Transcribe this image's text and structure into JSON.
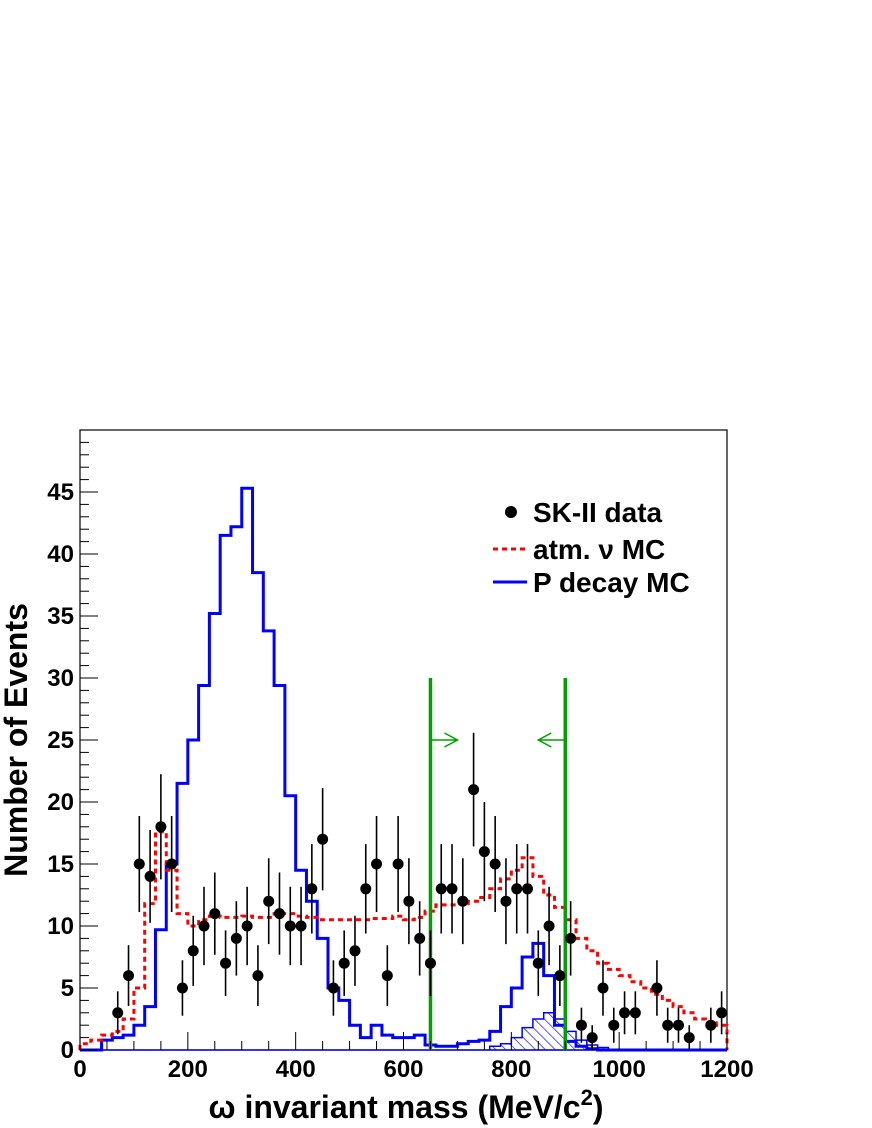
{
  "chart_data": {
    "type": "histogram",
    "title": "",
    "xlabel": "ω invariant mass (MeV/c²)",
    "xlabel_main": "ω invariant mass (MeV/c",
    "xlabel_sup": "2",
    "xlabel_close": ")",
    "ylabel": "Number of Events",
    "xlim": [
      0,
      1200
    ],
    "ylim": [
      0,
      50
    ],
    "x_ticks": [
      "0",
      "200",
      "400",
      "600",
      "800",
      "1000",
      "1200"
    ],
    "y_ticks": [
      "0",
      "5",
      "10",
      "15",
      "20",
      "25",
      "30",
      "35",
      "40",
      "45"
    ],
    "bin_width": 20,
    "grid": false,
    "legend": {
      "placement": "top-right",
      "entries": [
        {
          "label": "SK-II data",
          "style": "marker",
          "color": "#000000"
        },
        {
          "label": "atm. ν MC",
          "style": "dashed",
          "color": "#ff0000"
        },
        {
          "label": "P decay MC",
          "style": "solid",
          "color": "#0000ff"
        }
      ]
    },
    "cut_lines": {
      "color": "#00a000",
      "lower": 650,
      "upper": 900,
      "height": 30
    },
    "series": [
      {
        "name": "P decay MC",
        "kind": "step",
        "color": "#0000ff",
        "x_start": 0,
        "values": [
          0,
          0,
          0.8,
          1.0,
          1.2,
          2.0,
          3.5,
          9.7,
          15.0,
          21.5,
          25.0,
          29.4,
          35.2,
          41.5,
          42.2,
          45.3,
          38.5,
          33.8,
          29.4,
          20.5,
          14.5,
          12.0,
          9.0,
          5.0,
          4.0,
          2.0,
          1.0,
          2.0,
          1.2,
          1.0,
          1.0,
          1.2,
          0.4,
          0.3,
          0.3,
          0.5,
          0.7,
          0.8,
          1.5,
          3.5,
          5.0,
          7.5,
          8.6,
          6.0,
          2.0,
          0.7,
          0.3,
          0.1,
          0,
          0,
          0,
          0,
          0,
          0,
          0,
          0,
          0,
          0,
          0,
          0
        ]
      },
      {
        "name": "atm. ν MC",
        "kind": "step",
        "color": "#ff0000",
        "x_start": 0,
        "values": [
          0.5,
          0.8,
          1.2,
          1.5,
          2.5,
          5.0,
          11.8,
          17.6,
          14.5,
          11.0,
          10.0,
          10.5,
          10.8,
          10.7,
          10.7,
          10.8,
          10.7,
          10.7,
          11.0,
          11.0,
          10.8,
          10.7,
          10.5,
          10.5,
          10.5,
          10.5,
          10.5,
          10.6,
          10.6,
          10.8,
          10.5,
          10.7,
          11.2,
          11.7,
          11.7,
          11.8,
          12.0,
          12.3,
          13.0,
          13.8,
          14.5,
          15.5,
          14.0,
          12.5,
          11.5,
          10.5,
          9.0,
          8.0,
          7.0,
          6.5,
          6.0,
          5.5,
          5.0,
          4.5,
          4.0,
          3.5,
          3.0,
          2.5,
          2.2,
          2.0
        ]
      },
      {
        "name": "P decay MC (hatched)",
        "kind": "hatched",
        "color": "#0000ff",
        "x_start": 0,
        "values": [
          0,
          0,
          0,
          0,
          0,
          0,
          0,
          0,
          0,
          0,
          0,
          0,
          0,
          0,
          0,
          0,
          0,
          0,
          0,
          0,
          0,
          0,
          0,
          0,
          0,
          0,
          0,
          0,
          0,
          0,
          0,
          0,
          0,
          0,
          0,
          0,
          0,
          0,
          0.3,
          0.5,
          1.0,
          1.8,
          2.5,
          3.0,
          2.5,
          1.5,
          0.8,
          0.4,
          0.2,
          0,
          0,
          0,
          0,
          0,
          0,
          0,
          0,
          0,
          0,
          0
        ]
      },
      {
        "name": "SK-II data",
        "kind": "points",
        "color": "#000000",
        "x": [
          70,
          90,
          110,
          130,
          150,
          170,
          190,
          210,
          230,
          250,
          270,
          290,
          310,
          330,
          350,
          370,
          390,
          410,
          430,
          450,
          470,
          490,
          510,
          530,
          550,
          570,
          590,
          610,
          630,
          650,
          670,
          690,
          710,
          730,
          750,
          770,
          790,
          810,
          830,
          850,
          870,
          890,
          910,
          930,
          950,
          970,
          990,
          1010,
          1030,
          1070,
          1090,
          1110,
          1130,
          1170,
          1190
        ],
        "y": [
          3,
          6,
          15,
          14,
          18,
          15,
          5,
          8,
          10,
          11,
          7,
          9,
          10,
          6,
          12,
          11,
          10,
          10,
          13,
          17,
          5,
          7,
          8,
          13,
          15,
          6,
          15,
          12,
          9,
          7,
          13,
          13,
          12,
          21,
          16,
          15,
          12,
          13,
          13,
          7,
          10,
          6,
          9,
          2,
          1,
          5,
          2,
          3,
          3,
          5,
          2,
          2,
          1,
          2,
          3
        ]
      }
    ]
  }
}
